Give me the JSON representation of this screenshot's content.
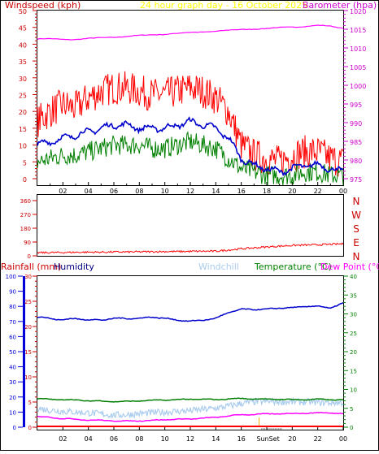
{
  "header": {
    "left_label": "Windspeed (kph)",
    "center_label": "24 hour graph day - 16 October 2025",
    "right_label": "Barometer (hpa)"
  },
  "wind_panel": {
    "left_ticks": [
      0,
      5,
      10,
      15,
      20,
      25,
      30,
      35,
      40,
      45,
      50
    ],
    "right_ticks": [
      975,
      980,
      985,
      990,
      995,
      1000,
      1005,
      1010,
      1015,
      1020
    ],
    "x_ticks": [
      "02",
      "04",
      "06",
      "08",
      "10",
      "12",
      "14",
      "16",
      "18",
      "20",
      "22",
      "00"
    ]
  },
  "direction_panel": {
    "ticks": [
      0,
      90,
      180,
      270,
      360
    ],
    "compass": [
      "N",
      "W",
      "S",
      "E",
      "N"
    ]
  },
  "lower_panel": {
    "labels": {
      "rainfall": "Rainfall (mm)",
      "humidity": "Humidity",
      "windchill": "Windchill",
      "temperature": "Temperature (°C)",
      "dewpoint": "Dew Point (°C)"
    },
    "humidity_ticks": [
      0,
      10,
      20,
      30,
      40,
      50,
      60,
      70,
      80,
      90,
      100
    ],
    "rain_ticks": [
      0,
      5,
      10,
      15,
      20,
      25,
      30
    ],
    "temp_ticks": [
      0,
      5,
      10,
      15,
      20,
      25,
      30,
      35,
      40
    ],
    "x_ticks": [
      "02",
      "04",
      "06",
      "08",
      "10",
      "12",
      "14",
      "16",
      "18",
      "20",
      "22",
      "00"
    ],
    "sun_label": "SunSet"
  },
  "colors": {
    "gust": "#ff0000",
    "average": "#0000cc",
    "lull": "#008000",
    "barometer": "#ff00ff",
    "direction": "#ff0000",
    "humidity": "#0000cc",
    "temperature": "#008000",
    "windchill": "#aaccee",
    "dewpoint": "#ff00ff",
    "rain": "#ff0000",
    "left_axis": "#cc0000",
    "header_center": "#ffff00",
    "right_axis": "#cc00cc"
  },
  "chart_data": [
    {
      "type": "line",
      "title": "24 hour graph day - 16 October 2025",
      "ylabel": "Windspeed (kph)",
      "y2label": "Barometer (hpa)",
      "ylim": [
        0,
        50
      ],
      "y2lim": [
        975,
        1020
      ],
      "x": [
        0,
        1,
        2,
        3,
        4,
        5,
        6,
        7,
        8,
        9,
        10,
        11,
        12,
        13,
        14,
        15,
        16,
        17,
        18,
        19,
        20,
        21,
        22,
        23,
        24
      ],
      "series": [
        {
          "name": "Gust",
          "values": [
            17,
            20,
            22,
            21,
            24,
            26,
            27,
            27,
            26,
            25,
            25,
            26,
            27,
            26,
            24,
            20,
            10,
            7,
            6,
            5,
            7,
            8,
            8,
            6,
            5
          ]
        },
        {
          "name": "Average",
          "values": [
            10,
            11,
            12,
            13,
            14,
            15,
            16,
            16,
            15,
            15,
            15,
            16,
            17,
            16,
            15,
            12,
            6,
            4,
            3,
            2,
            3,
            4,
            4,
            3,
            2
          ]
        },
        {
          "name": "Lull",
          "values": [
            5,
            6,
            7,
            7,
            8,
            9,
            10,
            10,
            10,
            9,
            9,
            10,
            11,
            10,
            9,
            6,
            3,
            2,
            1,
            1,
            1,
            2,
            2,
            1,
            1
          ]
        },
        {
          "name": "Barometer",
          "values": [
            1012.4,
            1012.4,
            1012.3,
            1012.3,
            1012.5,
            1012.7,
            1012.9,
            1013.1,
            1013.3,
            1013.5,
            1013.7,
            1013.9,
            1014.1,
            1014.3,
            1014.5,
            1014.7,
            1014.9,
            1015.1,
            1015.2,
            1015.4,
            1015.6,
            1015.8,
            1016.0,
            1015.8,
            1015.3
          ]
        }
      ]
    },
    {
      "type": "line",
      "ylabel": "Wind direction",
      "ylim": [
        0,
        360
      ],
      "x": [
        0,
        1,
        2,
        3,
        4,
        5,
        6,
        7,
        8,
        9,
        10,
        11,
        12,
        13,
        14,
        15,
        16,
        17,
        18,
        19,
        20,
        21,
        22,
        23,
        24
      ],
      "series": [
        {
          "name": "Direction",
          "values": [
            20,
            21,
            22,
            23,
            24,
            24,
            25,
            25,
            26,
            27,
            28,
            28,
            29,
            30,
            30,
            38,
            46,
            52,
            58,
            63,
            68,
            70,
            72,
            75,
            78
          ]
        }
      ]
    },
    {
      "type": "line",
      "ylabel": "Humidity",
      "ylim": [
        0,
        100
      ],
      "y2label": "Temperature (°C)",
      "y2lim": [
        0,
        40
      ],
      "x": [
        0,
        1,
        2,
        3,
        4,
        5,
        6,
        7,
        8,
        9,
        10,
        11,
        12,
        13,
        14,
        15,
        16,
        17,
        18,
        19,
        20,
        21,
        22,
        23,
        24
      ],
      "series": [
        {
          "name": "Humidity",
          "values": [
            73,
            72,
            71,
            72,
            71,
            71,
            72,
            72,
            72,
            73,
            72,
            71,
            70,
            71,
            72,
            76,
            78,
            78,
            78,
            79,
            79,
            80,
            80,
            79,
            82
          ]
        },
        {
          "name": "Temperature (°C)",
          "values": [
            7.5,
            7.4,
            7.3,
            7.2,
            7.0,
            6.9,
            6.8,
            6.8,
            7.0,
            7.1,
            7.2,
            7.3,
            7.4,
            7.4,
            7.3,
            7.5,
            7.6,
            7.5,
            7.4,
            7.4,
            7.3,
            7.3,
            7.4,
            7.3,
            7.2
          ]
        },
        {
          "name": "Windchill",
          "values": [
            5.0,
            4.5,
            4.2,
            4.0,
            3.8,
            3.5,
            3.2,
            3.3,
            3.6,
            3.8,
            4.0,
            4.2,
            4.4,
            4.7,
            5.0,
            5.6,
            6.3,
            6.7,
            6.8,
            6.8,
            6.7,
            6.7,
            6.6,
            6.5,
            6.5
          ]
        },
        {
          "name": "Dew Point (°C)",
          "values": [
            2.8,
            2.6,
            2.3,
            2.1,
            1.9,
            1.8,
            1.7,
            1.6,
            1.7,
            1.8,
            2.0,
            2.1,
            2.2,
            2.4,
            2.6,
            3.0,
            3.3,
            3.4,
            3.5,
            3.6,
            3.6,
            3.7,
            3.8,
            3.8,
            3.6
          ]
        }
      ],
      "rainfall_mm": [
        0,
        0,
        0,
        0,
        0,
        0,
        0,
        0,
        0,
        0,
        0,
        0,
        0,
        0,
        0,
        0,
        0,
        0,
        0,
        0,
        0,
        0,
        0,
        0,
        0
      ]
    }
  ]
}
